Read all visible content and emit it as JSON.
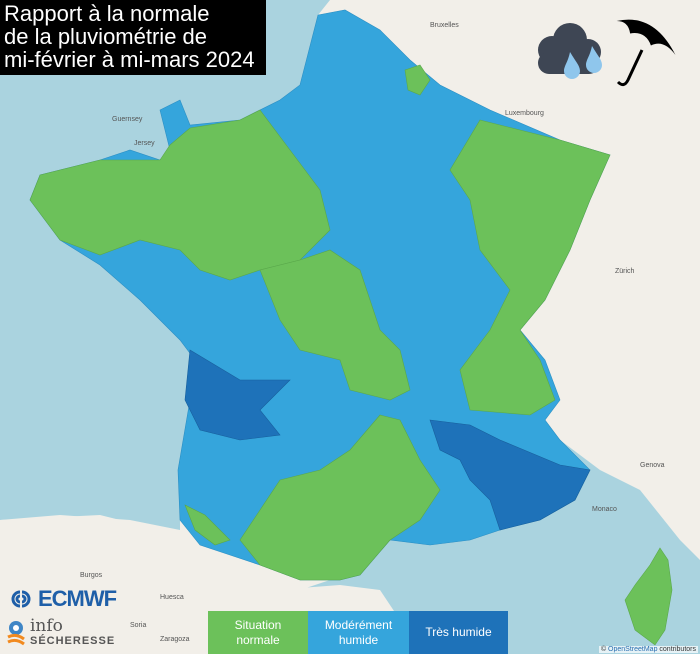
{
  "title": {
    "lines": [
      "Rapport à la normale",
      "de la pluviométrie de",
      "mi-février à mi-mars 2024"
    ]
  },
  "legend": [
    {
      "label_line1": "Situation",
      "label_line2": "normale",
      "color": "#6cc15a"
    },
    {
      "label_line1": "Modérément",
      "label_line2": "humide",
      "color": "#35a5dc"
    },
    {
      "label_line1": "Très humide",
      "label_line2": "",
      "color": "#1e72b9"
    }
  ],
  "colors": {
    "sea": "#aad3df",
    "land": "#f2efe9",
    "normal": "#6cc15a",
    "moderate": "#35a5dc",
    "very_wet": "#1e72b9"
  },
  "logos": {
    "ecmwf": "ECMWF",
    "info_line1": "info",
    "info_line2": "SÉCHERESSE"
  },
  "icons": [
    "rain-cloud-icon",
    "umbrella-icon"
  ],
  "attribution": {
    "prefix": "© ",
    "link": "OpenStreetMap",
    "suffix": " contributors"
  },
  "map_labels": [
    "Bruxelles",
    "Luxembourg",
    "Zürich",
    "Genova",
    "Monaco",
    "Burgos",
    "Huesca",
    "Soria",
    "Zaragoza",
    "Guernsey",
    "Jersey"
  ]
}
